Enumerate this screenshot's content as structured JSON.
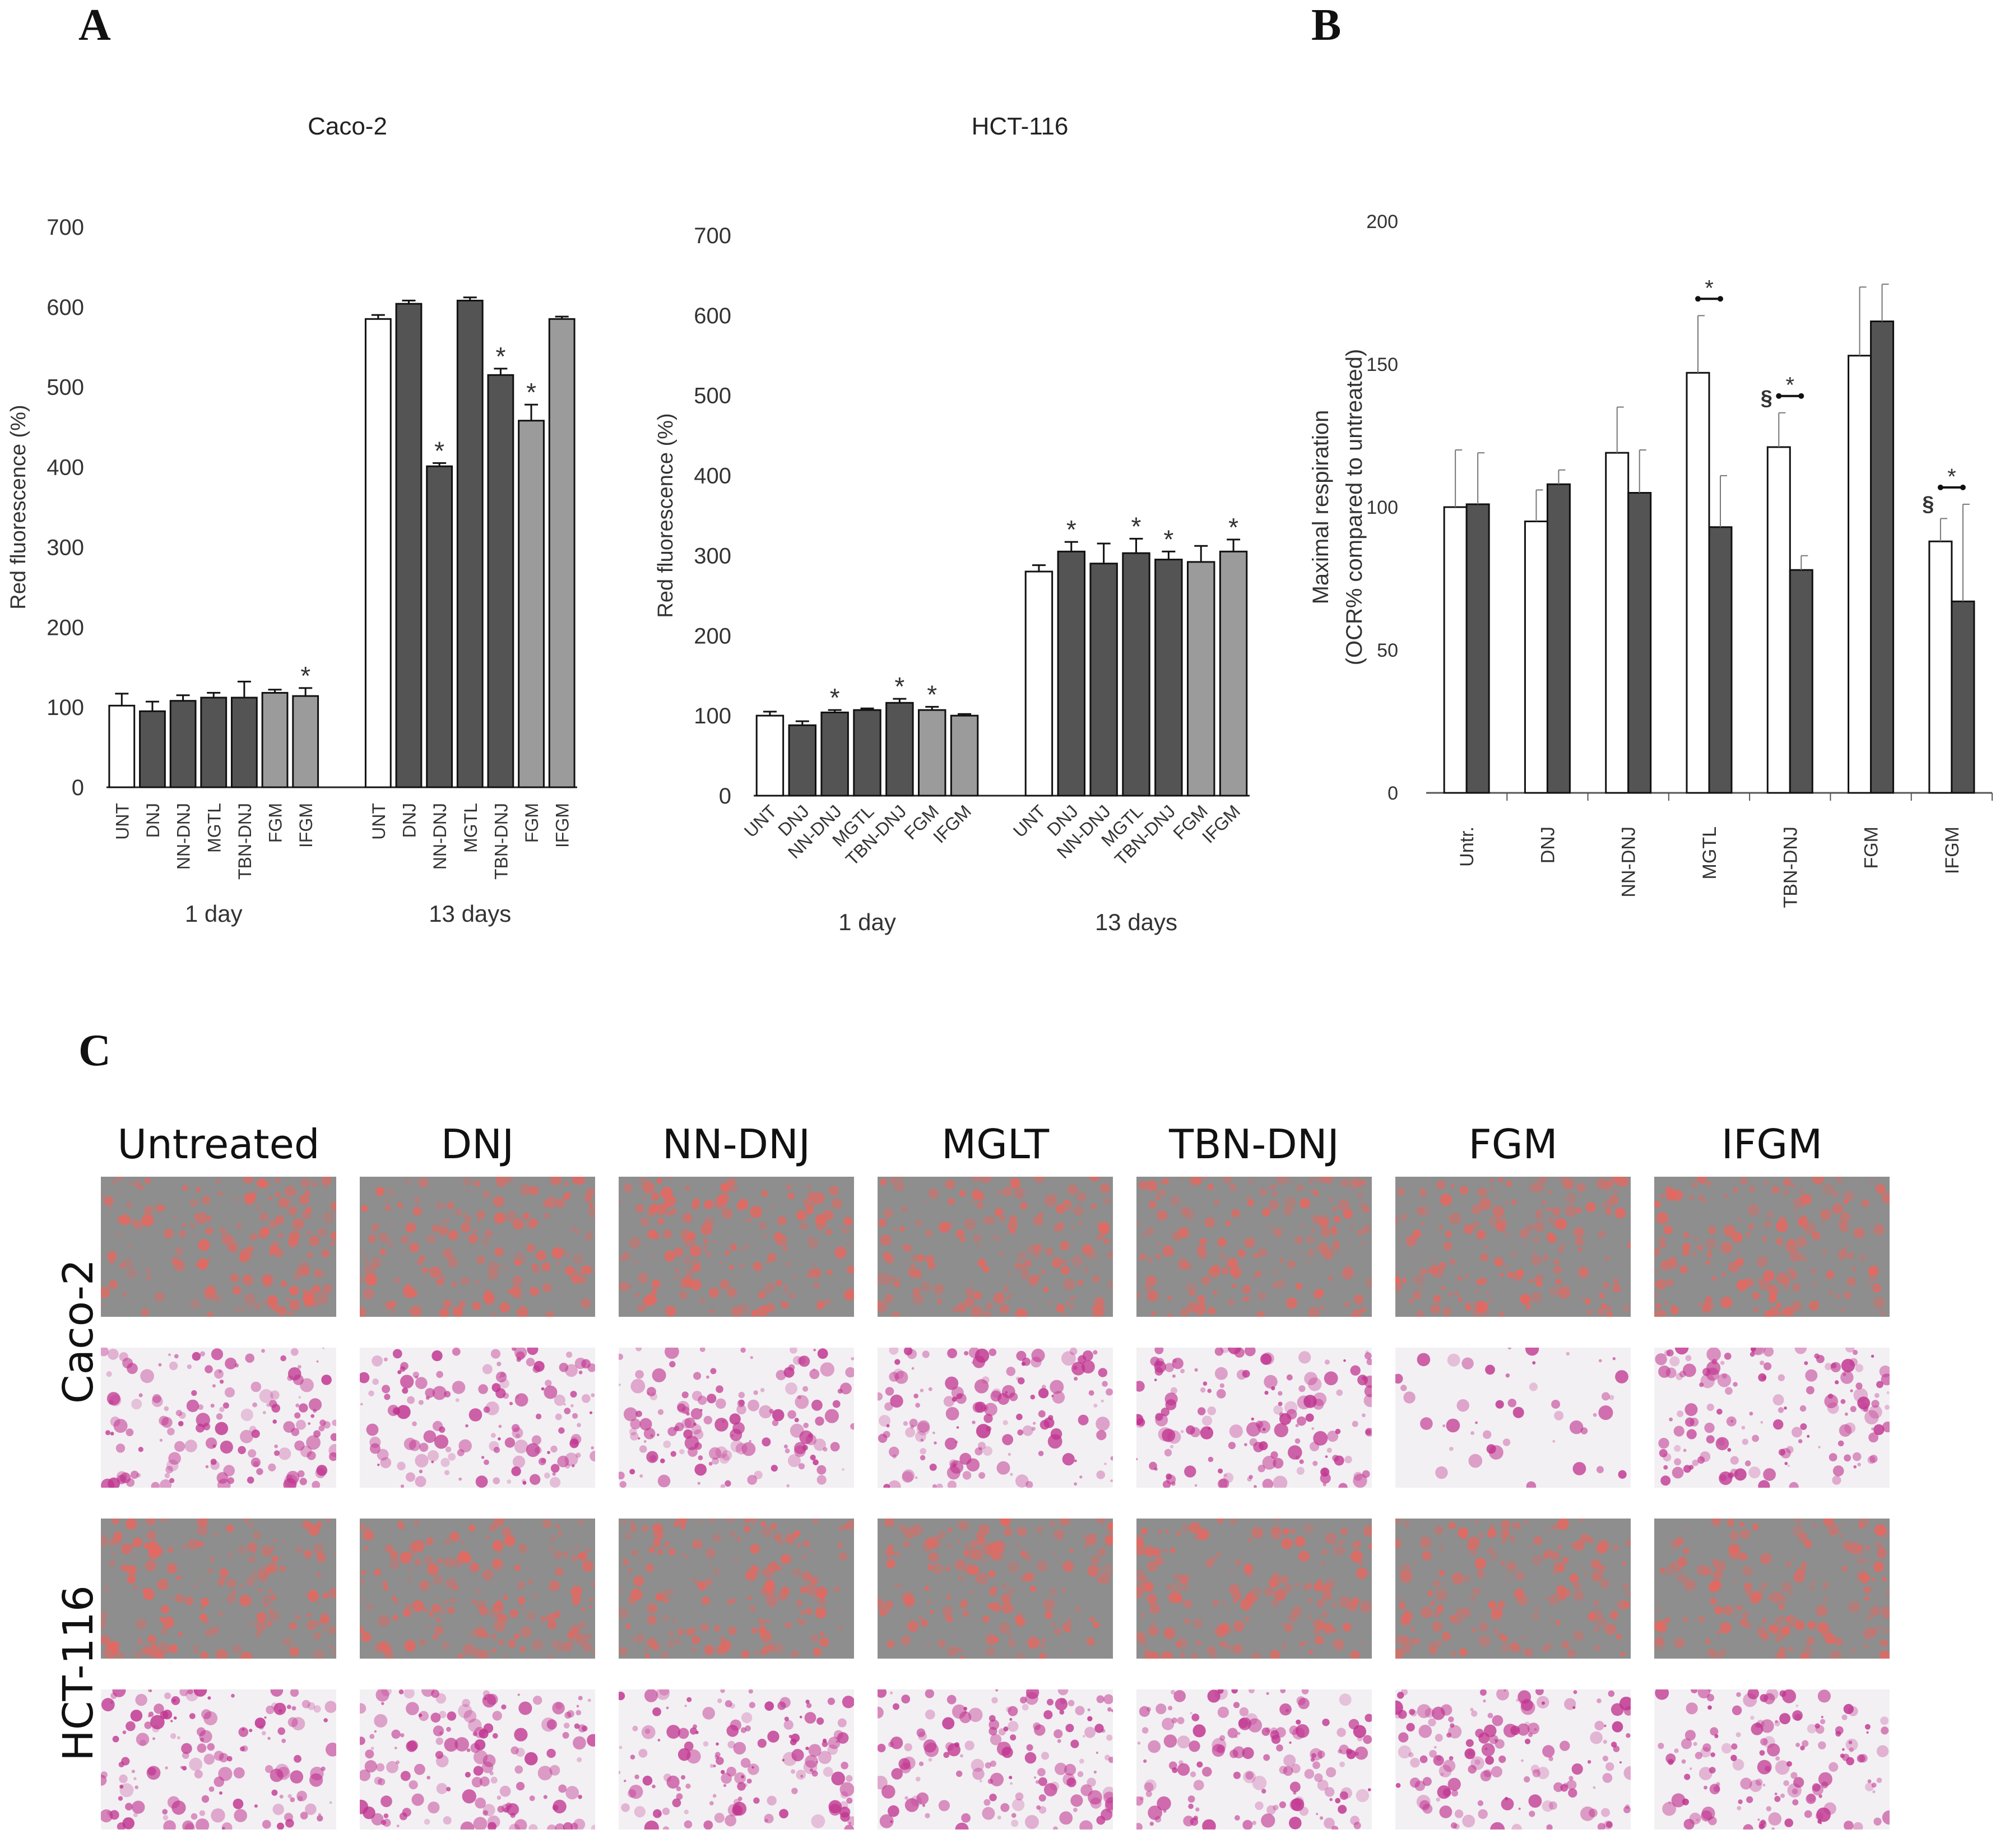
{
  "panels": {
    "a": "A",
    "b": "B",
    "c": "C"
  },
  "chart_data": [
    {
      "id": "caco2",
      "type": "bar",
      "title": "Caco-2",
      "ylabel": "Red fluorescence (%)",
      "ylim": [
        0,
        700
      ],
      "yticks": [
        "0",
        "100",
        "200",
        "300",
        "400",
        "500",
        "600",
        "700"
      ],
      "groups": [
        {
          "label": "1 day",
          "bars": [
            {
              "cat": "UNT",
              "value": 102,
              "err": 15,
              "fill": "white",
              "star": false
            },
            {
              "cat": "DNJ",
              "value": 95,
              "err": 12,
              "fill": "dark",
              "star": false
            },
            {
              "cat": "NN-DNJ",
              "value": 108,
              "err": 7,
              "fill": "dark",
              "star": false
            },
            {
              "cat": "MGTL",
              "value": 112,
              "err": 6,
              "fill": "dark",
              "star": false
            },
            {
              "cat": "TBN-DNJ",
              "value": 112,
              "err": 20,
              "fill": "dark",
              "star": false
            },
            {
              "cat": "FGM",
              "value": 118,
              "err": 4,
              "fill": "light",
              "star": false
            },
            {
              "cat": "IFGM",
              "value": 114,
              "err": 10,
              "fill": "light",
              "star": true
            }
          ]
        },
        {
          "label": "13 days",
          "bars": [
            {
              "cat": "UNT",
              "value": 585,
              "err": 5,
              "fill": "white",
              "star": false
            },
            {
              "cat": "DNJ",
              "value": 604,
              "err": 4,
              "fill": "dark",
              "star": false
            },
            {
              "cat": "NN-DNJ",
              "value": 401,
              "err": 4,
              "fill": "dark",
              "star": true
            },
            {
              "cat": "MGTL",
              "value": 608,
              "err": 4,
              "fill": "dark",
              "star": false
            },
            {
              "cat": "TBN-DNJ",
              "value": 515,
              "err": 8,
              "fill": "dark",
              "star": true
            },
            {
              "cat": "FGM",
              "value": 458,
              "err": 20,
              "fill": "light",
              "star": true
            },
            {
              "cat": "IFGM",
              "value": 585,
              "err": 3,
              "fill": "light",
              "star": false
            }
          ]
        }
      ]
    },
    {
      "id": "hct116",
      "type": "bar",
      "title": "HCT-116",
      "ylabel": "Red fluorescence (%)",
      "ylim": [
        0,
        700
      ],
      "yticks": [
        "0",
        "100",
        "200",
        "300",
        "400",
        "500",
        "600",
        "700"
      ],
      "groups": [
        {
          "label": "1 day",
          "bars": [
            {
              "cat": "UNT",
              "value": 100,
              "err": 5,
              "fill": "white",
              "star": false
            },
            {
              "cat": "DNJ",
              "value": 88,
              "err": 5,
              "fill": "dark",
              "star": false
            },
            {
              "cat": "NN-DNJ",
              "value": 104,
              "err": 3,
              "fill": "dark",
              "star": true
            },
            {
              "cat": "MGTL",
              "value": 107,
              "err": 2,
              "fill": "dark",
              "star": false
            },
            {
              "cat": "TBN-DNJ",
              "value": 116,
              "err": 5,
              "fill": "dark",
              "star": true
            },
            {
              "cat": "FGM",
              "value": 107,
              "err": 4,
              "fill": "light",
              "star": true
            },
            {
              "cat": "IFGM",
              "value": 100,
              "err": 2,
              "fill": "light",
              "star": false
            }
          ]
        },
        {
          "label": "13 days",
          "bars": [
            {
              "cat": "UNT",
              "value": 280,
              "err": 8,
              "fill": "white",
              "star": false
            },
            {
              "cat": "DNJ",
              "value": 305,
              "err": 12,
              "fill": "dark",
              "star": true
            },
            {
              "cat": "NN-DNJ",
              "value": 290,
              "err": 25,
              "fill": "dark",
              "star": false
            },
            {
              "cat": "MGTL",
              "value": 303,
              "err": 18,
              "fill": "dark",
              "star": true
            },
            {
              "cat": "TBN-DNJ",
              "value": 295,
              "err": 10,
              "fill": "dark",
              "star": true
            },
            {
              "cat": "FGM",
              "value": 292,
              "err": 20,
              "fill": "light",
              "star": false
            },
            {
              "cat": "IFGM",
              "value": 305,
              "err": 15,
              "fill": "light",
              "star": true
            }
          ]
        }
      ]
    },
    {
      "id": "ocr",
      "type": "bar",
      "title": "",
      "ylabel_line1": "Maximal respiration",
      "ylabel_line2": "(OCR% compared to untreated)",
      "ylim": [
        0,
        200
      ],
      "yticks": [
        "0",
        "50",
        "100",
        "150",
        "200"
      ],
      "categories": [
        "Untr.",
        "DNJ",
        "NN-DNJ",
        "MGTL",
        "TBN-DNJ",
        "FGM",
        "IFGM"
      ],
      "series": [
        {
          "name": "white",
          "values": [
            100,
            95,
            119,
            147,
            121,
            153,
            88
          ],
          "errors": [
            20,
            11,
            16,
            20,
            12,
            24,
            8
          ]
        },
        {
          "name": "dark",
          "values": [
            101,
            108,
            105,
            93,
            78,
            165,
            67
          ],
          "errors": [
            18,
            5,
            15,
            18,
            5,
            13,
            34
          ]
        }
      ],
      "annotations": [
        {
          "cat": "MGTL",
          "bracket_star": "*",
          "section_mark": ""
        },
        {
          "cat": "TBN-DNJ",
          "bracket_star": "*",
          "section_mark": "§"
        },
        {
          "cat": "IFGM",
          "bracket_star": "*",
          "section_mark": "§"
        }
      ]
    }
  ],
  "panel_c": {
    "columns": [
      "Untreated",
      "DNJ",
      "NN-DNJ",
      "MGLT",
      "TBN-DNJ",
      "FGM",
      "IFGM"
    ],
    "rows": [
      "Caco-2",
      "HCT-116"
    ]
  },
  "colors": {
    "dark": "#545454",
    "light": "#9b9b9b",
    "white": "#ffffff",
    "red": "#e8675f",
    "magenta": "#c0338f"
  }
}
